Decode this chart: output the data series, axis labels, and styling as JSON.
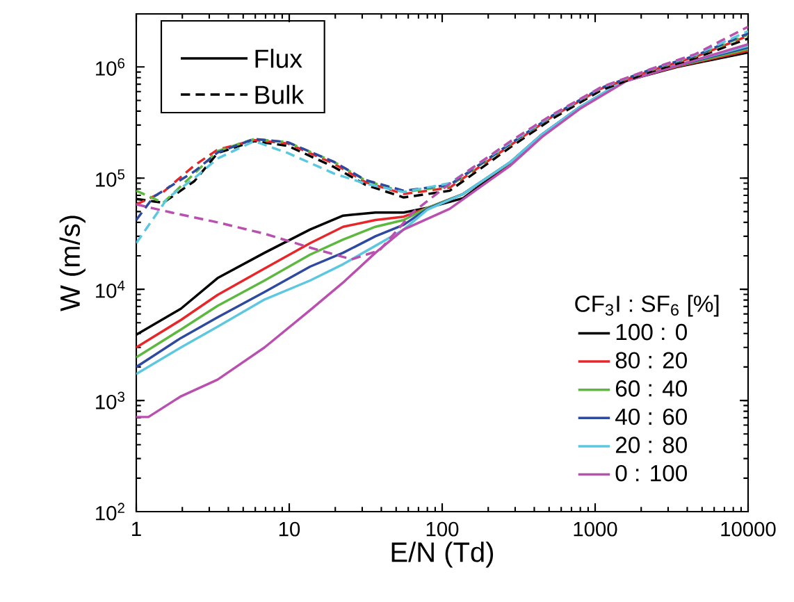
{
  "chart_data": {
    "type": "line",
    "xlabel": "E/N (Td)",
    "ylabel": "W (m/s)",
    "legend_title": "CF$_{3}$I : SF$_{6}$ [%]",
    "log": "xy",
    "legend": "bottom right",
    "marker": "none",
    "xlim": [
      1,
      10000
    ],
    "xticks": [
      1,
      10,
      100,
      1000,
      10000
    ],
    "ylim": [
      100,
      3000000
    ],
    "yticks": [
      {
        "value": 100,
        "label": "10$^{2}$"
      },
      {
        "value": 1000,
        "label": "10$^{3}$"
      },
      {
        "value": 10000,
        "label": "10$^{4}$"
      },
      {
        "value": 100000,
        "label": "10$^{5}$"
      },
      {
        "value": 1000000,
        "label": "10$^{6}$"
      }
    ],
    "annotations": [
      "Flux",
      "Bulk"
    ],
    "series": [
      {
        "name": "100 : 0",
        "color": "#000000",
        "line_style": "solid",
        "x": [
          1,
          1.96,
          3.4,
          6.9,
          13.7,
          22.5,
          36.6,
          56,
          80,
          137,
          280,
          450,
          795,
          1580,
          3440,
          10000
        ],
        "values": [
          3900,
          6700,
          12600,
          21300,
          34500,
          46000,
          49000,
          49000,
          54000,
          66000,
          137000,
          245000,
          430000,
          750000,
          1000000,
          1350000
        ]
      },
      {
        "name": "80 : 20",
        "color": "#e8262a",
        "line_style": "solid",
        "x": [
          1,
          1.96,
          3.4,
          6.9,
          13.7,
          22.5,
          36.6,
          56,
          80,
          137,
          280,
          450,
          795,
          1580,
          3440,
          10000
        ],
        "values": [
          3000,
          5300,
          8900,
          15400,
          26000,
          36500,
          42000,
          45000,
          54000,
          72000,
          138000,
          246000,
          432000,
          755000,
          1010000,
          1400000
        ]
      },
      {
        "name": "60 : 40",
        "color": "#5cb83e",
        "line_style": "solid",
        "x": [
          1,
          1.96,
          3.4,
          6.9,
          13.7,
          22.5,
          36.6,
          56,
          80,
          137,
          280,
          450,
          795,
          1580,
          3440,
          10000
        ],
        "values": [
          2440,
          4350,
          7100,
          12000,
          20500,
          28000,
          36500,
          42000,
          54000,
          72000,
          139000,
          247000,
          434000,
          760000,
          1020000,
          1450000
        ]
      },
      {
        "name": "40 : 60",
        "color": "#2e4aa0",
        "line_style": "solid",
        "x": [
          1,
          1.96,
          3.4,
          6.9,
          13.7,
          22.5,
          36.6,
          56,
          80,
          137,
          280,
          450,
          795,
          1580,
          3440,
          10000
        ],
        "values": [
          2000,
          3650,
          5600,
          9450,
          16000,
          21300,
          30000,
          38000,
          53000,
          72000,
          140000,
          248000,
          436000,
          765000,
          1030000,
          1500000
        ]
      },
      {
        "name": "20 : 80",
        "color": "#5bc8e0",
        "line_style": "solid",
        "x": [
          1,
          1.96,
          3.4,
          6.9,
          13.7,
          22.5,
          36.6,
          56,
          80,
          137,
          280,
          450,
          795,
          1580,
          3440,
          10000
        ],
        "values": [
          1730,
          3000,
          4600,
          8100,
          12000,
          16800,
          24600,
          34500,
          52000,
          72000,
          140000,
          248000,
          436000,
          770000,
          1040000,
          1550000
        ]
      },
      {
        "name": "0 : 100",
        "color": "#b94faf",
        "line_style": "solid",
        "x": [
          1,
          1.2,
          1.96,
          3.4,
          6.9,
          13.7,
          22.5,
          36.6,
          56,
          112,
          280,
          450,
          795,
          1580,
          3440,
          10000
        ],
        "values": [
          710,
          710,
          1090,
          1540,
          3000,
          6500,
          11500,
          21300,
          34500,
          53000,
          130000,
          235000,
          420000,
          740000,
          1030000,
          1600000
        ]
      },
      {
        "color": "#000000",
        "line_style": "dashed",
        "x": [
          1,
          1.5,
          2.4,
          3.4,
          5.9,
          9.8,
          19.6,
          31.6,
          56,
          112,
          280,
          520,
          1100,
          2270,
          4500,
          10000
        ],
        "values": [
          65000,
          60000,
          94000,
          168000,
          215000,
          195000,
          126000,
          87000,
          67000,
          77000,
          190000,
          340000,
          620000,
          900000,
          1200000,
          1800000
        ]
      },
      {
        "color": "#e8262a",
        "line_style": "dashed",
        "x": [
          1,
          1.5,
          2.4,
          3.4,
          5.9,
          9.8,
          19.6,
          31.6,
          56,
          112,
          280,
          520,
          1100,
          2270,
          4500,
          10000
        ],
        "values": [
          58000,
          75000,
          130000,
          180000,
          220000,
          205000,
          135000,
          92000,
          72000,
          82000,
          198000,
          355000,
          640000,
          920000,
          1230000,
          1900000
        ]
      },
      {
        "color": "#5cb83e",
        "line_style": "dashed",
        "x": [
          1,
          1.5,
          2.4,
          3.4,
          5.9,
          9.8,
          19.6,
          31.6,
          56,
          112,
          280,
          520,
          1100,
          2270,
          4500,
          10000
        ],
        "values": [
          77000,
          60000,
          110000,
          175000,
          225000,
          210000,
          140000,
          95000,
          75000,
          85000,
          203000,
          360000,
          650000,
          935000,
          1250000,
          1950000
        ]
      },
      {
        "color": "#2e4aa0",
        "line_style": "dashed",
        "x": [
          1,
          1.3,
          2.4,
          3.4,
          5.9,
          9.8,
          19.6,
          31.6,
          56,
          112,
          280,
          520,
          1100,
          2270,
          4500,
          10000
        ],
        "values": [
          42000,
          68000,
          115000,
          170000,
          225000,
          210000,
          140000,
          96000,
          77000,
          87000,
          205000,
          362000,
          650000,
          940000,
          1260000,
          2000000
        ]
      },
      {
        "color": "#5bc8e0",
        "line_style": "dashed",
        "x": [
          1,
          1.6,
          2.4,
          3.4,
          5.9,
          9.8,
          19.6,
          31.6,
          56,
          112,
          280,
          520,
          1100,
          2270,
          4500,
          10000
        ],
        "values": [
          26000,
          66000,
          100000,
          150000,
          215000,
          168000,
          110000,
          89000,
          75000,
          90000,
          210000,
          365000,
          655000,
          945000,
          1280000,
          2100000
        ]
      },
      {
        "color": "#b94faf",
        "line_style": "dashed",
        "x": [
          1,
          1.7,
          3.4,
          6.9,
          13.7,
          25.6,
          39,
          64,
          112,
          280,
          520,
          1100,
          2270,
          4500,
          10000
        ],
        "values": [
          58000,
          49000,
          40000,
          31600,
          23700,
          18600,
          22400,
          49000,
          89000,
          215000,
          370000,
          660000,
          950000,
          1300000,
          2300000
        ]
      }
    ]
  }
}
